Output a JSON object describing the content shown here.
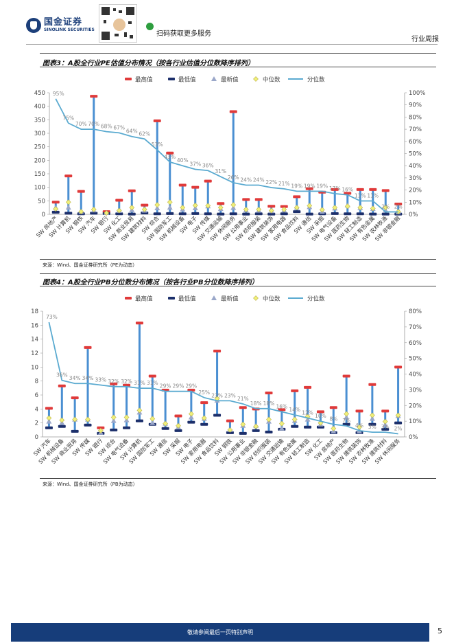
{
  "header": {
    "logo_cn": "国金证券",
    "logo_en": "SINOLINK SECURITIES",
    "scan_text": "扫码获取更多服务",
    "report_type": "行业周报"
  },
  "legend": {
    "max": "最高值",
    "min": "最低值",
    "latest": "最新值",
    "median": "中位数",
    "pct": "分位数"
  },
  "colors": {
    "max": "#e03a3a",
    "min": "#1c2f6b",
    "latest": "#9aa7c9",
    "median": "#f0f07a",
    "pct": "#5aaad0",
    "range": "#4a8fd2"
  },
  "chart_data": [
    {
      "type": "range",
      "title": "图表3：A股全行业PE估值分布情况（按各行业估值分位数降序排列）",
      "source": "来源：Wind、国金证券研究所（PE为动态）",
      "ylim": [
        0,
        450
      ],
      "y_ticks": [
        "0",
        "50",
        "100",
        "150",
        "200",
        "250",
        "300",
        "350",
        "400",
        "450"
      ],
      "y2lim": [
        0,
        100
      ],
      "y2_ticks": [
        "0%",
        "10%",
        "20%",
        "30%",
        "40%",
        "50%",
        "60%",
        "70%",
        "80%",
        "90%",
        "100%"
      ],
      "categories": [
        "SW 房地产",
        "SW 计算机",
        "SW 钢铁",
        "SW 汽车",
        "SW 银行",
        "SW 化工",
        "SW 商业贸易",
        "SW 建筑材料",
        "SW 综合",
        "SW 国防军工",
        "SW 机械设备",
        "SW 电子",
        "SW 传媒",
        "SW 交通运输",
        "SW 休闲服务",
        "SW 公用事业",
        "SW 纺织服装",
        "SW 建筑装饰",
        "SW 家用电器",
        "SW 食品饮料",
        "SW 通信",
        "SW 采掘",
        "SW 电气设备",
        "SW 医药生物",
        "SW 轻工制造",
        "SW 有色金属",
        "SW 农林牧渔",
        "SW 非银金融"
      ],
      "series": [
        {
          "name": "最高值",
          "values": [
            45,
            142,
            85,
            437,
            10,
            52,
            87,
            34,
            346,
            227,
            108,
            100,
            123,
            40,
            380,
            55,
            55,
            30,
            29,
            65,
            95,
            82,
            92,
            78,
            92,
            92,
            88,
            38
          ]
        },
        {
          "name": "最低值",
          "values": [
            8,
            4,
            2,
            4,
            3,
            2,
            1,
            5,
            2,
            3,
            2,
            3,
            2,
            1,
            2,
            1,
            2,
            1,
            2,
            10,
            1,
            2,
            3,
            2,
            2,
            1,
            1,
            1
          ]
        },
        {
          "name": "最新值",
          "values": [
            25,
            25,
            9,
            15,
            5,
            13,
            16,
            14,
            23,
            25,
            18,
            23,
            30,
            20,
            24,
            15,
            14,
            12,
            15,
            25,
            27,
            10,
            22,
            33,
            24,
            20,
            15,
            8
          ]
        },
        {
          "name": "中位数",
          "values": [
            20,
            45,
            10,
            18,
            5,
            14,
            25,
            18,
            35,
            45,
            25,
            33,
            32,
            25,
            35,
            18,
            18,
            14,
            18,
            25,
            32,
            17,
            25,
            30,
            25,
            22,
            25,
            10
          ]
        },
        {
          "name": "分位数",
          "values": [
            95,
            75,
            70,
            70,
            68,
            67,
            64,
            62,
            53,
            43,
            40,
            37,
            36,
            31,
            26,
            24,
            24,
            22,
            21,
            19,
            19,
            19,
            17,
            16,
            11,
            11,
            2,
            2
          ]
        }
      ],
      "pct_labels": [
        "95%",
        "75%",
        "70%",
        "70%",
        "68%",
        "67%",
        "64%",
        "62%",
        "53%",
        "43%",
        "40%",
        "37%",
        "36%",
        "31%",
        "26%",
        "24%",
        "24%",
        "22%",
        "21%",
        "19%",
        "19%",
        "19%",
        "17%",
        "16%",
        "11%",
        "11%",
        "2%",
        "2%"
      ]
    },
    {
      "type": "range",
      "title": "图表4：A股全行业PB分位数分布情况（按各行业PB分位数降序排列）",
      "source": "来源：Wind、国金证券研究所（PB为动态）",
      "ylim": [
        0,
        18
      ],
      "y_ticks": [
        "0",
        "2",
        "4",
        "6",
        "8",
        "10",
        "12",
        "14",
        "16",
        "18"
      ],
      "y2lim": [
        0,
        80
      ],
      "y2_ticks": [
        "0%",
        "10%",
        "20%",
        "30%",
        "40%",
        "50%",
        "60%",
        "70%",
        "80%"
      ],
      "categories": [
        "SW 汽车",
        "SW 机械设备",
        "SW 商业贸易",
        "SW 传媒",
        "SW 银行",
        "SW 综合",
        "SW 电气设备",
        "SW 计算机",
        "SW 国防军工",
        "SW 通信",
        "SW 采掘",
        "SW 电子",
        "SW 家用电器",
        "SW 食品饮料",
        "SW 钢铁",
        "SW 公用事业",
        "SW 非银金融",
        "SW 纺织服装",
        "SW 交通运输",
        "SW 有色金属",
        "SW 轻工制造",
        "SW 化工",
        "SW 房地产",
        "SW 医药生物",
        "SW 建筑装饰",
        "SW 农林牧渔",
        "SW 建筑材料",
        "SW 休闲服务"
      ],
      "series": [
        {
          "name": "最高值",
          "values": [
            4.1,
            7.3,
            5.6,
            12.8,
            1.3,
            7.6,
            7.4,
            16.3,
            8.7,
            6.7,
            3.0,
            6.7,
            4.9,
            12.3,
            2.3,
            4.2,
            4.0,
            6.3,
            3.9,
            6.6,
            7.1,
            3.6,
            4.2,
            8.7,
            3.7,
            7.5,
            3.7,
            10.0
          ]
        },
        {
          "name": "最低值",
          "values": [
            1.3,
            1.5,
            0.8,
            1.7,
            0.5,
            1.0,
            1.3,
            2.3,
            1.8,
            1.2,
            0.9,
            2.1,
            1.8,
            3.1,
            0.6,
            0.5,
            0.9,
            0.7,
            1.1,
            1.5,
            1.4,
            1.4,
            0.6,
            1.8,
            0.6,
            1.8,
            1.1,
            2.0
          ]
        },
        {
          "name": "最新值",
          "values": [
            2.2,
            2.0,
            2.5,
            2.5,
            0.6,
            2.3,
            2.4,
            3.5,
            2.0,
            1.9,
            1.4,
            2.8,
            2.6,
            5.2,
            1.0,
            1.6,
            1.6,
            2.2,
            1.2,
            2.3,
            2.5,
            1.8,
            0.8,
            2.8,
            0.8,
            2.6,
            1.7,
            3.0
          ]
        },
        {
          "name": "中位数",
          "values": [
            2.7,
            2.4,
            2.5,
            2.5,
            0.9,
            2.8,
            2.8,
            3.8,
            2.6,
            1.9,
            1.6,
            3.3,
            2.7,
            5.5,
            1.0,
            1.8,
            1.5,
            2.5,
            1.9,
            2.5,
            2.9,
            2.0,
            1.2,
            3.3,
            1.4,
            3.1,
            2.2,
            3.1
          ]
        },
        {
          "name": "分位数",
          "values": [
            73,
            36,
            34,
            34,
            33,
            32,
            32,
            31,
            31,
            29,
            29,
            29,
            25,
            23,
            23,
            21,
            18,
            18,
            16,
            14,
            12,
            10,
            8,
            7,
            4,
            3,
            3,
            2
          ]
        }
      ],
      "pct_labels": [
        "73%",
        "36%",
        "34%",
        "34%",
        "33%",
        "32%",
        "32%",
        "31%",
        "31%",
        "29%",
        "29%",
        "29%",
        "25%",
        "23%",
        "23%",
        "21%",
        "18%",
        "18%",
        "16%",
        "14%",
        "12%",
        "10%",
        "8%",
        "7%",
        "4%",
        "3%",
        "3%",
        "2%"
      ]
    }
  ],
  "footer": {
    "disclaimer": "敬请参阅最后一页特别声明",
    "page": "5"
  }
}
